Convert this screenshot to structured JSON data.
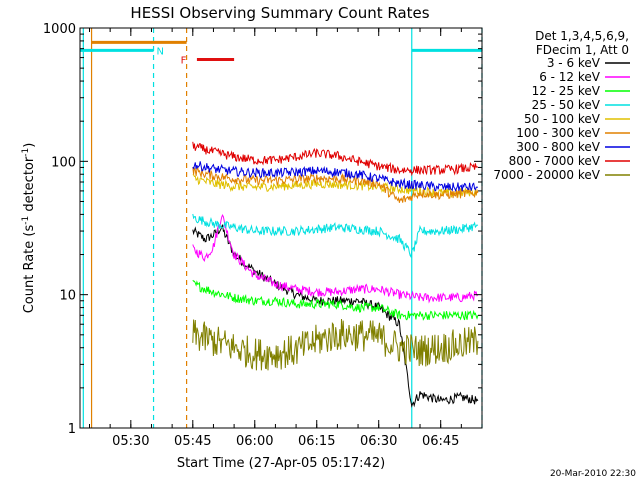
{
  "chart_data": {
    "type": "line",
    "title": "HESSI Observing Summary Count Rates",
    "xlabel": "Start Time (27-Apr-05 05:17:42)",
    "ylabel": "Count Rate (s⁻¹ detector⁻¹)",
    "ylabel_main": "Count Rate (s",
    "ylabel_sup1": "-1",
    "ylabel_mid": " detector",
    "ylabel_sup2": "-1",
    "ylabel_end": ")",
    "y_scale": "log",
    "ylim": [
      1,
      1000
    ],
    "xlim": [
      "05:17:42",
      "06:55:00"
    ],
    "x_ticks": [
      "05:30",
      "05:45",
      "06:00",
      "06:15",
      "06:30",
      "06:45"
    ],
    "y_ticks": [
      "1",
      "10",
      "100",
      "1000"
    ],
    "legend_header": [
      "Det 1,3,4,5,6,9,",
      "FDecim 1, Att 0"
    ],
    "legend_position": "right",
    "footer_date": "20-Mar-2010 22:30",
    "markers": [
      {
        "label": "N",
        "color": "#00e0e0"
      },
      {
        "label": "F",
        "color": "#e01010"
      }
    ],
    "vertical_lines": [
      {
        "time": "05:18:30",
        "color": "#00e0e0",
        "style": "solid"
      },
      {
        "time": "05:20:30",
        "color": "#e08000",
        "style": "solid"
      },
      {
        "time": "05:35:30",
        "color": "#00e0e0",
        "style": "dashed"
      },
      {
        "time": "05:43:30",
        "color": "#e08000",
        "style": "dashed"
      },
      {
        "time": "06:38:00",
        "color": "#00e0e0",
        "style": "solid"
      },
      {
        "time": "06:55:00",
        "color": "#00e0e0",
        "style": "dashed"
      }
    ],
    "bars": [
      {
        "color": "#e08000",
        "start": "05:20:30",
        "end": "05:43:30",
        "value": 780
      },
      {
        "color": "#00e0e0",
        "start": "05:17:42",
        "end": "05:35:30",
        "value": 680
      },
      {
        "color": "#00e0e0",
        "start": "06:38:00",
        "end": "06:55:00",
        "value": 680
      },
      {
        "color": "#e01010",
        "start": "05:46:00",
        "end": "05:55:00",
        "value": 580
      }
    ],
    "series": [
      {
        "name": "3 - 6 keV",
        "color": "#000000",
        "x": [
          "05:45:00",
          "05:48:00",
          "05:50:00",
          "05:52:00",
          "05:55:00",
          "06:00:00",
          "06:05:00",
          "06:10:00",
          "06:15:00",
          "06:20:00",
          "06:25:00",
          "06:30:00",
          "06:35:00",
          "06:38:00",
          "06:40:00",
          "06:45:00",
          "06:50:00",
          "06:54:00"
        ],
        "values": [
          30,
          26,
          28,
          32,
          20,
          15,
          12,
          10,
          9,
          9,
          9,
          8,
          6,
          1.5,
          1.8,
          1.6,
          1.7,
          1.6
        ]
      },
      {
        "name": "6 - 12 keV",
        "color": "#ff00ff",
        "x": [
          "05:45:00",
          "05:48:00",
          "05:50:00",
          "05:52:00",
          "05:55:00",
          "06:00:00",
          "06:05:00",
          "06:10:00",
          "06:15:00",
          "06:20:00",
          "06:25:00",
          "06:30:00",
          "06:35:00",
          "06:40:00",
          "06:45:00",
          "06:50:00",
          "06:54:00"
        ],
        "values": [
          22,
          19,
          23,
          40,
          20,
          14,
          12,
          11,
          10.5,
          10.5,
          11,
          11,
          10,
          9.5,
          9.5,
          9.5,
          10
        ]
      },
      {
        "name": "12 - 25 keV",
        "color": "#00ff00",
        "x": [
          "05:45:00",
          "05:50:00",
          "05:55:00",
          "06:00:00",
          "06:05:00",
          "06:10:00",
          "06:15:00",
          "06:20:00",
          "06:25:00",
          "06:30:00",
          "06:35:00",
          "06:40:00",
          "06:45:00",
          "06:50:00",
          "06:54:00"
        ],
        "values": [
          12,
          10.5,
          9.5,
          9,
          9,
          8.5,
          8.5,
          8.5,
          8,
          8,
          7,
          7,
          7,
          7,
          7
        ]
      },
      {
        "name": "25 - 50 keV",
        "color": "#00e0e0",
        "x": [
          "05:45:00",
          "05:50:00",
          "05:55:00",
          "06:00:00",
          "06:05:00",
          "06:10:00",
          "06:15:00",
          "06:20:00",
          "06:25:00",
          "06:30:00",
          "06:35:00",
          "06:38:00",
          "06:40:00",
          "06:45:00",
          "06:50:00",
          "06:54:00"
        ],
        "values": [
          38,
          34,
          32,
          30,
          30,
          30,
          31,
          32,
          31,
          30,
          26,
          20,
          30,
          30,
          31,
          33
        ]
      },
      {
        "name": "50 - 100 keV",
        "color": "#e0c000",
        "x": [
          "05:45:00",
          "05:50:00",
          "05:55:00",
          "06:00:00",
          "06:05:00",
          "06:10:00",
          "06:15:00",
          "06:20:00",
          "06:25:00",
          "06:30:00",
          "06:35:00",
          "06:40:00",
          "06:45:00",
          "06:50:00",
          "06:54:00"
        ],
        "values": [
          75,
          68,
          65,
          64,
          65,
          66,
          68,
          67,
          66,
          64,
          62,
          60,
          58,
          58,
          60
        ]
      },
      {
        "name": "100 - 300 keV",
        "color": "#e08000",
        "x": [
          "05:45:00",
          "05:50:00",
          "05:55:00",
          "06:00:00",
          "06:05:00",
          "06:10:00",
          "06:15:00",
          "06:20:00",
          "06:25:00",
          "06:30:00",
          "06:35:00",
          "06:40:00",
          "06:45:00",
          "06:50:00",
          "06:54:00"
        ],
        "values": [
          85,
          78,
          74,
          72,
          72,
          73,
          75,
          74,
          72,
          68,
          50,
          58,
          56,
          57,
          58
        ]
      },
      {
        "name": "300 - 800 keV",
        "color": "#0000e0",
        "x": [
          "05:45:00",
          "05:50:00",
          "05:55:00",
          "06:00:00",
          "06:05:00",
          "06:10:00",
          "06:15:00",
          "06:20:00",
          "06:25:00",
          "06:30:00",
          "06:35:00",
          "06:40:00",
          "06:45:00",
          "06:50:00",
          "06:54:00"
        ],
        "values": [
          95,
          88,
          84,
          82,
          82,
          83,
          85,
          83,
          80,
          74,
          68,
          66,
          64,
          64,
          64
        ]
      },
      {
        "name": "800 - 7000 keV",
        "color": "#e00000",
        "x": [
          "05:45:00",
          "05:50:00",
          "05:55:00",
          "06:00:00",
          "06:05:00",
          "06:10:00",
          "06:15:00",
          "06:20:00",
          "06:25:00",
          "06:30:00",
          "06:35:00",
          "06:40:00",
          "06:45:00",
          "06:50:00",
          "06:54:00"
        ],
        "values": [
          130,
          118,
          108,
          102,
          102,
          108,
          115,
          110,
          100,
          92,
          86,
          86,
          86,
          88,
          90
        ]
      },
      {
        "name": "7000 - 20000 keV",
        "color": "#808000",
        "x": [
          "05:45:00",
          "05:50:00",
          "05:55:00",
          "06:00:00",
          "06:05:00",
          "06:10:00",
          "06:15:00",
          "06:20:00",
          "06:25:00",
          "06:30:00",
          "06:35:00",
          "06:40:00",
          "06:45:00",
          "06:50:00",
          "06:54:00"
        ],
        "values": [
          5,
          4.5,
          4,
          3.6,
          3.6,
          3.8,
          4.5,
          5,
          5,
          4.8,
          4,
          3.8,
          4,
          4.2,
          4.5
        ]
      }
    ]
  }
}
